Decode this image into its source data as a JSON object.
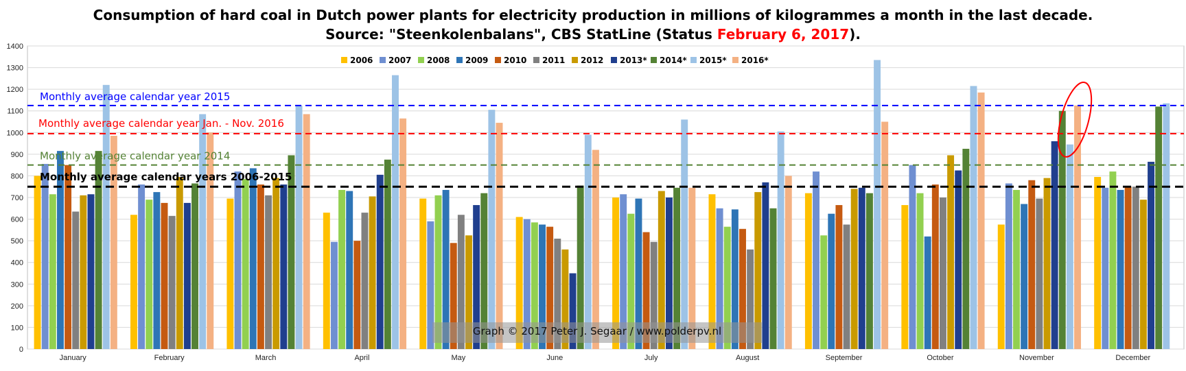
{
  "title_line1": "Consumption of hard coal in Dutch power plants for electricity production in millions of kilogrammes a month in the last decade.",
  "title_line2_prefix": "Source: \"Steenkolenbalans\", CBS StatLine (Status ",
  "title_line2_date": "February 6, 2017",
  "title_line2_suffix": ").",
  "credit": "Graph © 2017 Peter J. Segaar / www.polderpv.nl",
  "chart_data": {
    "type": "bar",
    "title": "Consumption of hard coal in Dutch power plants for electricity production in millions of kilogrammes a month in the last decade.",
    "xlabel": "",
    "ylabel": "",
    "ylim": [
      0,
      1400
    ],
    "yticks": [
      0,
      100,
      200,
      300,
      400,
      500,
      600,
      700,
      800,
      900,
      1000,
      1100,
      1200,
      1300,
      1400
    ],
    "grid": true,
    "legend_position": "top-center",
    "categories": [
      "January",
      "February",
      "March",
      "April",
      "May",
      "June",
      "July",
      "August",
      "September",
      "October",
      "November",
      "December"
    ],
    "series": [
      {
        "name": "2006",
        "color": "#ffc000",
        "values": [
          800,
          620,
          695,
          630,
          695,
          610,
          700,
          715,
          720,
          665,
          575,
          795
        ]
      },
      {
        "name": "2007",
        "color": "#6f8fd1",
        "values": [
          855,
          760,
          820,
          495,
          590,
          600,
          715,
          650,
          820,
          850,
          765,
          745
        ]
      },
      {
        "name": "2008",
        "color": "#92d050",
        "values": [
          715,
          690,
          785,
          735,
          710,
          585,
          625,
          565,
          525,
          720,
          735,
          820
        ]
      },
      {
        "name": "2009",
        "color": "#2e75b6",
        "values": [
          915,
          725,
          835,
          730,
          735,
          575,
          695,
          645,
          625,
          520,
          670,
          735
        ]
      },
      {
        "name": "2010",
        "color": "#c55a11",
        "values": [
          850,
          675,
          760,
          500,
          490,
          565,
          540,
          555,
          665,
          760,
          780,
          750
        ]
      },
      {
        "name": "2011",
        "color": "#808080",
        "values": [
          635,
          615,
          710,
          630,
          620,
          510,
          495,
          460,
          575,
          700,
          695,
          750
        ]
      },
      {
        "name": "2012",
        "color": "#c99a00",
        "values": [
          710,
          795,
          790,
          705,
          525,
          460,
          730,
          725,
          740,
          895,
          790,
          690
        ]
      },
      {
        "name": "2013*",
        "color": "#203f8e",
        "values": [
          715,
          675,
          760,
          805,
          665,
          350,
          700,
          770,
          745,
          825,
          960,
          865
        ]
      },
      {
        "name": "2014*",
        "color": "#548235",
        "values": [
          915,
          765,
          895,
          875,
          720,
          755,
          745,
          650,
          720,
          925,
          1100,
          1120
        ]
      },
      {
        "name": "2015*",
        "color": "#9dc3e6",
        "values": [
          1220,
          1085,
          1125,
          1265,
          1105,
          990,
          1060,
          1005,
          1335,
          1215,
          945,
          1135
        ]
      },
      {
        "name": "2016*",
        "color": "#f4b183",
        "values": [
          985,
          1000,
          1085,
          1065,
          1045,
          920,
          745,
          800,
          1050,
          1185,
          1125,
          null
        ]
      }
    ],
    "reference_lines": [
      {
        "label": "Monthly average calendar year 2015",
        "value": 1125,
        "color": "#0000ff",
        "style": "dashed"
      },
      {
        "label": "Monthly average calendar year Jan. - Nov. 2016",
        "value": 995,
        "color": "#ff0000",
        "style": "dashed"
      },
      {
        "label": "Monthly average calendar year 2014",
        "value": 850,
        "color": "#548235",
        "style": "dashed"
      },
      {
        "label": "Monthly  average calendar years 2006-2015",
        "value": 750,
        "color": "#000000",
        "style": "dashed"
      }
    ],
    "annotations": [
      {
        "type": "ellipse",
        "color": "#ff0000",
        "highlights": "November 2016*"
      }
    ]
  }
}
